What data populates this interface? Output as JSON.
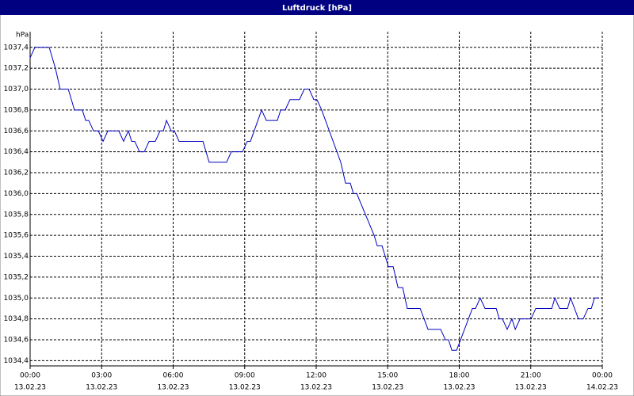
{
  "chart_data": {
    "type": "line",
    "title": "Luftdruck [hPa]",
    "y_label": "hPa",
    "x": [
      0,
      0.2,
      0.8,
      1.06,
      1.26,
      1.6,
      1.86,
      2.19,
      2.33,
      2.46,
      2.66,
      2.86,
      3.06,
      3.26,
      3.72,
      3.92,
      4.12,
      4.26,
      4.39,
      4.59,
      4.79,
      4.99,
      5.25,
      5.45,
      5.59,
      5.72,
      5.92,
      6.05,
      6.25,
      7.25,
      7.51,
      8.24,
      8.44,
      8.91,
      9.11,
      9.24,
      9.71,
      9.91,
      10.37,
      10.51,
      10.7,
      10.9,
      11.3,
      11.5,
      11.7,
      11.9,
      12.03,
      12.23,
      13.03,
      13.23,
      13.43,
      13.56,
      13.7,
      14.43,
      14.56,
      14.76,
      15.03,
      15.23,
      15.43,
      15.63,
      15.82,
      16.02,
      16.36,
      16.69,
      17.22,
      17.42,
      17.55,
      17.69,
      17.89,
      18.55,
      18.68,
      18.88,
      19.08,
      19.55,
      19.68,
      19.81,
      20.01,
      20.21,
      20.35,
      20.55,
      21.01,
      21.21,
      21.88,
      22.01,
      22.21,
      22.54,
      22.67,
      23.0,
      23.2,
      23.4,
      23.54,
      23.67,
      23.87
    ],
    "series": [
      {
        "name": "Luftdruck",
        "color": "#0000c0",
        "values": [
          1037.3,
          1037.4,
          1037.4,
          1037.2,
          1037.0,
          1037.0,
          1036.8,
          1036.8,
          1036.7,
          1036.7,
          1036.6,
          1036.6,
          1036.5,
          1036.6,
          1036.6,
          1036.5,
          1036.6,
          1036.5,
          1036.5,
          1036.4,
          1036.4,
          1036.5,
          1036.5,
          1036.6,
          1036.6,
          1036.7,
          1036.6,
          1036.6,
          1036.5,
          1036.5,
          1036.3,
          1036.3,
          1036.4,
          1036.4,
          1036.5,
          1036.5,
          1036.8,
          1036.7,
          1036.7,
          1036.8,
          1036.8,
          1036.9,
          1036.9,
          1037.0,
          1037.0,
          1036.9,
          1036.9,
          1036.8,
          1036.3,
          1036.1,
          1036.1,
          1036.0,
          1036.0,
          1035.6,
          1035.5,
          1035.5,
          1035.3,
          1035.3,
          1035.1,
          1035.1,
          1034.9,
          1034.9,
          1034.9,
          1034.7,
          1034.7,
          1034.6,
          1034.6,
          1034.5,
          1034.5,
          1034.9,
          1034.9,
          1035.0,
          1034.9,
          1034.9,
          1034.8,
          1034.8,
          1034.7,
          1034.8,
          1034.7,
          1034.8,
          1034.8,
          1034.9,
          1034.9,
          1035.0,
          1034.9,
          1034.9,
          1035.0,
          1034.8,
          1034.8,
          1034.9,
          1034.9,
          1035.0,
          1035.0
        ]
      }
    ],
    "xlim": [
      0,
      24
    ],
    "ylim": [
      1034.35,
      1037.55
    ],
    "xticks": [
      {
        "value": 0,
        "label": "00:00",
        "date": "13.02.23"
      },
      {
        "value": 3,
        "label": "03:00",
        "date": "13.02.23"
      },
      {
        "value": 6,
        "label": "06:00",
        "date": "13.02.23"
      },
      {
        "value": 9,
        "label": "09:00",
        "date": "13.02.23"
      },
      {
        "value": 12,
        "label": "12:00",
        "date": "13.02.23"
      },
      {
        "value": 15,
        "label": "15:00",
        "date": "13.02.23"
      },
      {
        "value": 18,
        "label": "18:00",
        "date": "13.02.23"
      },
      {
        "value": 21,
        "label": "21:00",
        "date": "13.02.23"
      },
      {
        "value": 24,
        "label": "00:00",
        "date": "14.02.23"
      }
    ],
    "yticks": [
      {
        "value": 1034.4,
        "label": "1034,4"
      },
      {
        "value": 1034.6,
        "label": "1034,6"
      },
      {
        "value": 1034.8,
        "label": "1034,8"
      },
      {
        "value": 1035.0,
        "label": "1035,0"
      },
      {
        "value": 1035.2,
        "label": "1035,2"
      },
      {
        "value": 1035.4,
        "label": "1035,4"
      },
      {
        "value": 1035.6,
        "label": "1035,6"
      },
      {
        "value": 1035.8,
        "label": "1035,8"
      },
      {
        "value": 1036.0,
        "label": "1036,0"
      },
      {
        "value": 1036.2,
        "label": "1036,2"
      },
      {
        "value": 1036.4,
        "label": "1036,4"
      },
      {
        "value": 1036.6,
        "label": "1036,6"
      },
      {
        "value": 1036.8,
        "label": "1036,8"
      },
      {
        "value": 1037.0,
        "label": "1037,0"
      },
      {
        "value": 1037.2,
        "label": "1037,2"
      },
      {
        "value": 1037.4,
        "label": "1037,4"
      }
    ],
    "grid": true
  }
}
